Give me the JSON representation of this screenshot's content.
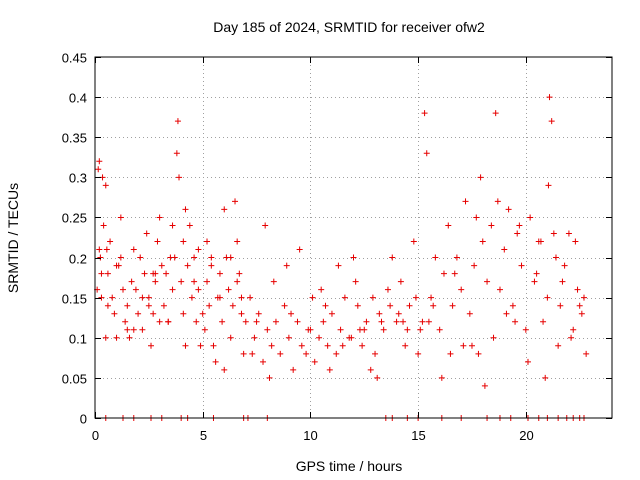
{
  "chart_data": {
    "type": "scatter",
    "title": "Day 185 of 2024, SRMTID for receiver ofw2",
    "xlabel": "GPS time / hours",
    "ylabel": "SRMTID / TECUs",
    "xlim": [
      0,
      24
    ],
    "ylim": [
      0,
      0.45
    ],
    "xticks": [
      0,
      5,
      10,
      15,
      20
    ],
    "yticks": [
      0,
      0.05,
      0.1,
      0.15,
      0.2,
      0.25,
      0.3,
      0.35,
      0.4,
      0.45
    ],
    "grid": true,
    "marker": "+",
    "color": "#e60000",
    "series": [
      {
        "name": "ofw2",
        "x": [
          0.1,
          0.15,
          0.2,
          0.25,
          0.3,
          0.35,
          0.4,
          0.5,
          0.55,
          0.6,
          0.7,
          0.8,
          0.9,
          1.0,
          1.1,
          1.2,
          1.3,
          1.4,
          1.5,
          1.6,
          1.7,
          1.8,
          1.9,
          2.0,
          2.1,
          2.2,
          2.3,
          2.4,
          2.5,
          2.6,
          2.7,
          2.8,
          2.9,
          3.0,
          3.1,
          3.2,
          3.3,
          3.4,
          3.5,
          3.6,
          3.7,
          3.8,
          3.85,
          3.9,
          4.0,
          4.1,
          4.2,
          4.3,
          4.4,
          4.5,
          4.6,
          4.7,
          4.8,
          4.9,
          5.0,
          5.1,
          5.2,
          5.3,
          5.4,
          5.5,
          5.6,
          5.7,
          5.8,
          5.9,
          6.0,
          6.1,
          6.2,
          6.3,
          6.4,
          6.5,
          6.6,
          6.7,
          6.8,
          6.9,
          7.0,
          7.2,
          7.4,
          7.6,
          7.8,
          8.0,
          8.2,
          8.4,
          8.6,
          8.8,
          9.0,
          9.2,
          9.4,
          9.6,
          9.8,
          10.0,
          10.2,
          10.4,
          10.6,
          10.8,
          11.0,
          11.2,
          11.4,
          11.6,
          11.8,
          12.0,
          12.2,
          12.4,
          12.6,
          12.8,
          13.0,
          13.2,
          13.4,
          13.6,
          13.8,
          14.0,
          14.2,
          14.4,
          14.6,
          14.8,
          15.0,
          15.2,
          15.3,
          15.4,
          15.6,
          15.8,
          16.0,
          16.2,
          16.4,
          16.6,
          16.8,
          17.0,
          17.2,
          17.4,
          17.6,
          17.8,
          17.9,
          18.0,
          18.2,
          18.4,
          18.6,
          18.8,
          19.0,
          19.2,
          19.4,
          19.6,
          19.8,
          20.0,
          20.2,
          20.4,
          20.6,
          20.8,
          21.0,
          21.05,
          21.1,
          21.2,
          21.4,
          21.6,
          21.8,
          22.0,
          22.2,
          22.4,
          22.6,
          22.8,
          0.3,
          0.6,
          1.0,
          1.5,
          2.2,
          2.8,
          3.4,
          4.2,
          4.6,
          5.4,
          6.0,
          6.8,
          7.3,
          8.1,
          9.1,
          10.1,
          10.9,
          11.5,
          12.3,
          13.1,
          14.3,
          15.1,
          16.1,
          17.1,
          18.1,
          19.1,
          20.1,
          20.9,
          21.5,
          22.1,
          22.7,
          0.5,
          1.8,
          2.5,
          3.0,
          4.1,
          5.2,
          6.6,
          7.5,
          8.3,
          9.5,
          10.5,
          11.3,
          12.1,
          12.9,
          13.7,
          14.5,
          15.5,
          16.5,
          17.5,
          18.5,
          19.5,
          20.5,
          21.3,
          22.3,
          0.2,
          1.2,
          2.7,
          3.6,
          4.8,
          5.8,
          6.3,
          7.9,
          8.9,
          9.9,
          10.7,
          11.9,
          12.5,
          13.3,
          14.1,
          14.9,
          15.7,
          16.7,
          17.7,
          18.7,
          19.7,
          20.7,
          21.7,
          22.5,
          0.5,
          1.3,
          1.8,
          2.6,
          3.1,
          4.0,
          4.3,
          5.5,
          6.9,
          7.1,
          8.0,
          13.5,
          13.8,
          14.5,
          15.0,
          16.1,
          17.0,
          18.2,
          18.8,
          19.3,
          20.1,
          20.6,
          21.0,
          21.5,
          21.9,
          22.2,
          22.5,
          22.7
        ],
        "y": [
          0.16,
          0.31,
          0.32,
          0.2,
          0.18,
          0.3,
          0.24,
          0.29,
          0.21,
          0.18,
          0.22,
          0.15,
          0.13,
          0.1,
          0.19,
          0.25,
          0.16,
          0.12,
          0.14,
          0.1,
          0.17,
          0.21,
          0.16,
          0.13,
          0.2,
          0.11,
          0.18,
          0.23,
          0.15,
          0.09,
          0.13,
          0.17,
          0.22,
          0.25,
          0.19,
          0.14,
          0.18,
          0.12,
          0.2,
          0.24,
          0.2,
          0.33,
          0.37,
          0.3,
          0.17,
          0.22,
          0.26,
          0.19,
          0.24,
          0.15,
          0.2,
          0.12,
          0.16,
          0.09,
          0.13,
          0.11,
          0.17,
          0.14,
          0.19,
          0.09,
          0.07,
          0.15,
          0.18,
          0.12,
          0.26,
          0.2,
          0.16,
          0.1,
          0.14,
          0.27,
          0.22,
          0.18,
          0.13,
          0.08,
          0.12,
          0.15,
          0.1,
          0.13,
          0.07,
          0.11,
          0.09,
          0.12,
          0.08,
          0.14,
          0.1,
          0.06,
          0.12,
          0.09,
          0.08,
          0.11,
          0.07,
          0.1,
          0.12,
          0.09,
          0.13,
          0.08,
          0.11,
          0.15,
          0.1,
          0.2,
          0.14,
          0.09,
          0.12,
          0.06,
          0.08,
          0.13,
          0.11,
          0.16,
          0.2,
          0.12,
          0.17,
          0.09,
          0.14,
          0.22,
          0.08,
          0.12,
          0.38,
          0.33,
          0.15,
          0.2,
          0.11,
          0.18,
          0.24,
          0.14,
          0.2,
          0.16,
          0.27,
          0.13,
          0.19,
          0.08,
          0.3,
          0.22,
          0.17,
          0.24,
          0.38,
          0.16,
          0.21,
          0.26,
          0.14,
          0.23,
          0.19,
          0.11,
          0.25,
          0.17,
          0.22,
          0.12,
          0.15,
          0.29,
          0.4,
          0.37,
          0.2,
          0.14,
          0.19,
          0.23,
          0.11,
          0.16,
          0.13,
          0.08,
          0.15,
          0.14,
          0.19,
          0.11,
          0.15,
          0.18,
          0.12,
          0.09,
          0.17,
          0.2,
          0.06,
          0.15,
          0.08,
          0.05,
          0.13,
          0.15,
          0.06,
          0.09,
          0.11,
          0.05,
          0.12,
          0.11,
          0.05,
          0.09,
          0.04,
          0.13,
          0.07,
          0.05,
          0.09,
          0.1,
          0.15,
          0.1,
          0.11,
          0.14,
          0.12,
          0.13,
          0.22,
          0.17,
          0.12,
          0.17,
          0.21,
          0.16,
          0.19,
          0.17,
          0.15,
          0.14,
          0.11,
          0.12,
          0.08,
          0.09,
          0.1,
          0.12,
          0.18,
          0.23,
          0.22,
          0.21,
          0.2,
          0.18,
          0.16,
          0.21,
          0.15,
          0.2,
          0.24,
          0.19,
          0.11,
          0.14,
          0.1,
          0.11,
          0.12,
          0.13,
          0.15,
          0.14,
          0.18,
          0.25,
          0.27,
          0.24,
          0.22,
          0.17,
          0.14,
          0.0,
          0.0,
          0.0,
          0.0,
          0.0,
          0.0,
          0.0,
          0.0,
          0.0,
          0.0,
          0.0,
          0.0,
          0.0,
          0.0,
          0.0,
          0.0,
          0.0,
          0.0,
          0.0,
          0.0,
          0.0,
          0.0,
          0.0,
          0.0,
          0.0,
          0.0,
          0.0,
          0.0
        ]
      }
    ]
  }
}
